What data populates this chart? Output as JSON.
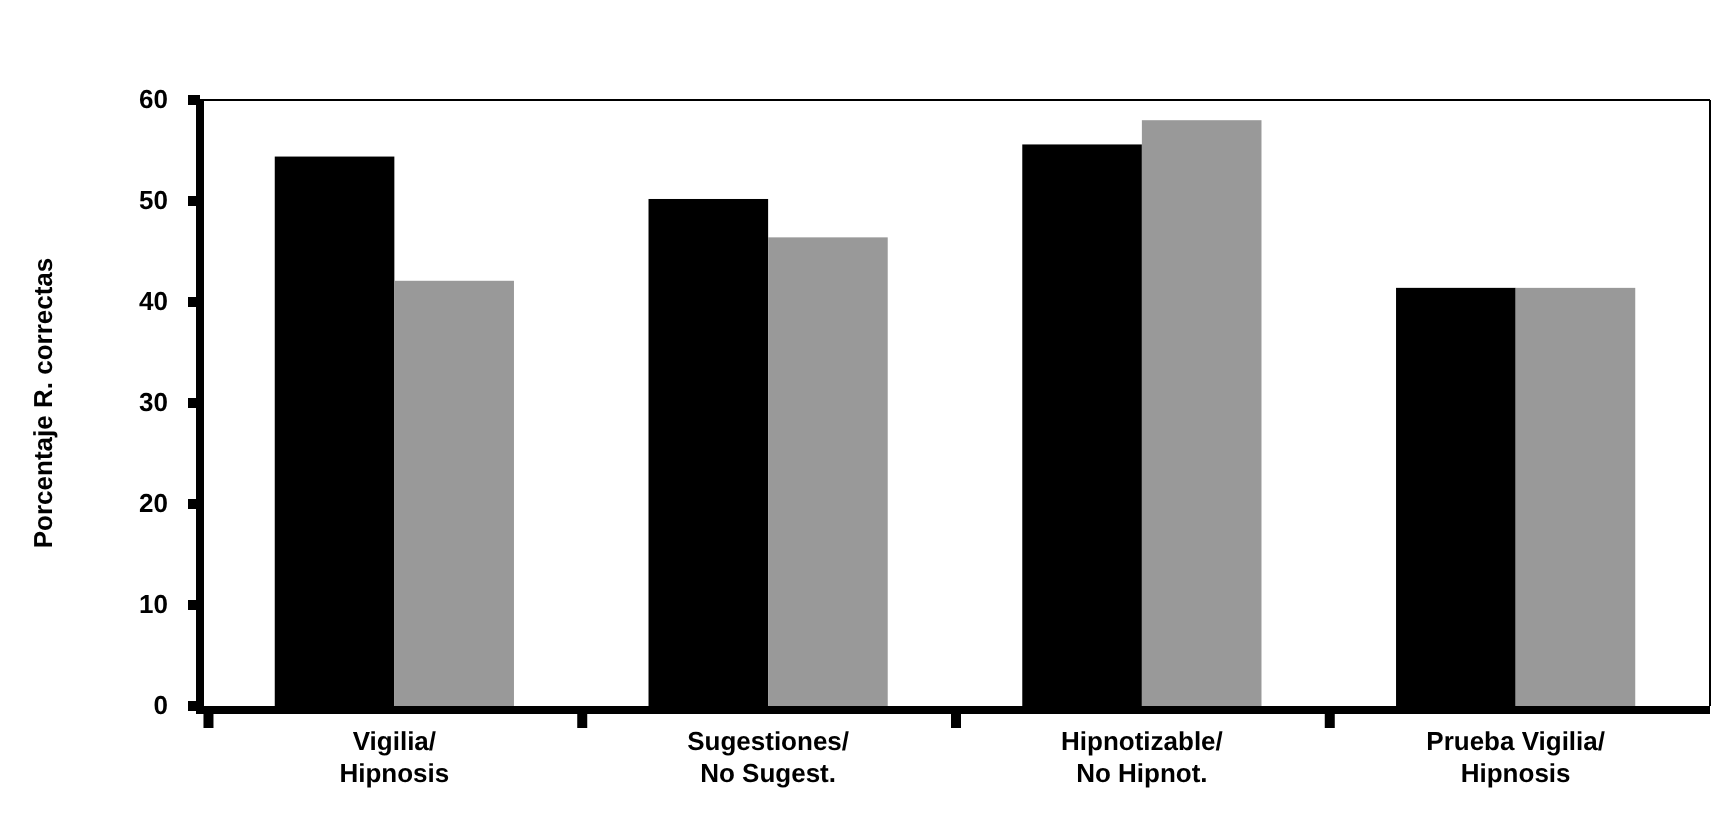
{
  "chart_data": {
    "type": "bar",
    "ylabel": "Porcentaje R. correctas",
    "categories": [
      "Vigilia/\nHipnosis",
      "Sugestiones/\nNo Sugest.",
      "Hipnotizable/\nNo Hipnot.",
      "Prueba Vigilia/\nHipnosis"
    ],
    "series": [
      {
        "color": "#000000",
        "values": [
          54.4,
          50.2,
          55.6,
          41.4
        ]
      },
      {
        "color": "#999999",
        "values": [
          42.1,
          46.4,
          58.0,
          41.4
        ]
      }
    ],
    "ylim": [
      0,
      60
    ],
    "yticks": [
      0,
      10,
      20,
      30,
      40,
      50,
      60
    ],
    "grid": false
  }
}
